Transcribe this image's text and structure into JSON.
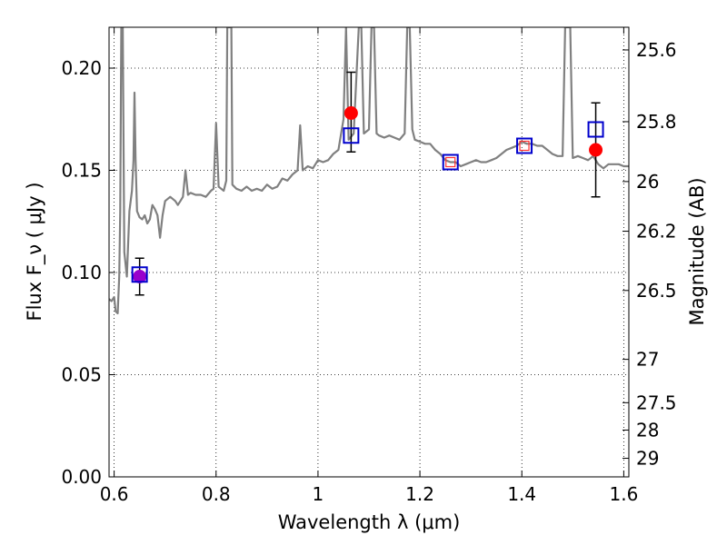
{
  "chart_data": {
    "type": "scatter",
    "title": "",
    "xlabel": "Wavelength  λ (μm)",
    "ylabel": "Flux  F_ν  ( μJy )",
    "y2label": "Magnitude (AB)",
    "xlim": [
      0.59,
      1.61
    ],
    "ylim": [
      0.0,
      0.22
    ],
    "grid": "dotted",
    "x_ticks": [
      0.6,
      0.8,
      1.0,
      1.2,
      1.4,
      1.6
    ],
    "x_tick_labels": [
      "0.6",
      "0.8",
      "1",
      "1.2",
      "1.4",
      "1.6"
    ],
    "y_ticks": [
      0.0,
      0.05,
      0.1,
      0.15,
      0.2
    ],
    "y_tick_labels": [
      "0.00",
      "0.05",
      "0.10",
      "0.15",
      "0.20"
    ],
    "y2_ticks": [
      {
        "flux": 0.2089,
        "label": "25.6"
      },
      {
        "flux": 0.1738,
        "label": "25.8"
      },
      {
        "flux": 0.1445,
        "label": "26"
      },
      {
        "flux": 0.1202,
        "label": "26.2"
      },
      {
        "flux": 0.0912,
        "label": "26.5"
      },
      {
        "flux": 0.0575,
        "label": "27"
      },
      {
        "flux": 0.0363,
        "label": "27.5"
      },
      {
        "flux": 0.0229,
        "label": "28"
      },
      {
        "flux": 0.0091,
        "label": "29"
      }
    ],
    "series": [
      {
        "kind": "line",
        "color": "#808080",
        "points": [
          [
            0.59,
            0.087
          ],
          [
            0.595,
            0.086
          ],
          [
            0.6,
            0.088
          ],
          [
            0.603,
            0.081
          ],
          [
            0.607,
            0.08
          ],
          [
            0.61,
            0.098
          ],
          [
            0.612,
            0.13
          ],
          [
            0.614,
            0.22
          ],
          [
            0.617,
            0.22
          ],
          [
            0.619,
            0.14
          ],
          [
            0.62,
            0.11
          ],
          [
            0.625,
            0.098
          ],
          [
            0.63,
            0.13
          ],
          [
            0.635,
            0.14
          ],
          [
            0.638,
            0.155
          ],
          [
            0.64,
            0.188
          ],
          [
            0.642,
            0.155
          ],
          [
            0.645,
            0.13
          ],
          [
            0.65,
            0.127
          ],
          [
            0.655,
            0.126
          ],
          [
            0.66,
            0.128
          ],
          [
            0.665,
            0.124
          ],
          [
            0.67,
            0.126
          ],
          [
            0.675,
            0.133
          ],
          [
            0.68,
            0.131
          ],
          [
            0.685,
            0.128
          ],
          [
            0.69,
            0.117
          ],
          [
            0.695,
            0.128
          ],
          [
            0.7,
            0.135
          ],
          [
            0.71,
            0.137
          ],
          [
            0.72,
            0.135
          ],
          [
            0.725,
            0.133
          ],
          [
            0.73,
            0.135
          ],
          [
            0.735,
            0.137
          ],
          [
            0.74,
            0.15
          ],
          [
            0.745,
            0.138
          ],
          [
            0.75,
            0.139
          ],
          [
            0.76,
            0.138
          ],
          [
            0.77,
            0.138
          ],
          [
            0.78,
            0.137
          ],
          [
            0.79,
            0.14
          ],
          [
            0.795,
            0.141
          ],
          [
            0.8,
            0.173
          ],
          [
            0.805,
            0.142
          ],
          [
            0.81,
            0.141
          ],
          [
            0.815,
            0.14
          ],
          [
            0.82,
            0.145
          ],
          [
            0.822,
            0.22
          ],
          [
            0.83,
            0.22
          ],
          [
            0.832,
            0.143
          ],
          [
            0.84,
            0.141
          ],
          [
            0.85,
            0.14
          ],
          [
            0.86,
            0.142
          ],
          [
            0.87,
            0.14
          ],
          [
            0.88,
            0.141
          ],
          [
            0.89,
            0.14
          ],
          [
            0.9,
            0.143
          ],
          [
            0.91,
            0.141
          ],
          [
            0.92,
            0.142
          ],
          [
            0.93,
            0.146
          ],
          [
            0.94,
            0.145
          ],
          [
            0.95,
            0.148
          ],
          [
            0.96,
            0.15
          ],
          [
            0.965,
            0.172
          ],
          [
            0.97,
            0.15
          ],
          [
            0.98,
            0.152
          ],
          [
            0.99,
            0.151
          ],
          [
            1.0,
            0.155
          ],
          [
            1.01,
            0.154
          ],
          [
            1.02,
            0.155
          ],
          [
            1.03,
            0.158
          ],
          [
            1.04,
            0.16
          ],
          [
            1.05,
            0.175
          ],
          [
            1.055,
            0.22
          ],
          [
            1.06,
            0.165
          ],
          [
            1.07,
            0.168
          ],
          [
            1.08,
            0.22
          ],
          [
            1.085,
            0.22
          ],
          [
            1.09,
            0.168
          ],
          [
            1.1,
            0.17
          ],
          [
            1.105,
            0.22
          ],
          [
            1.11,
            0.22
          ],
          [
            1.115,
            0.168
          ],
          [
            1.12,
            0.167
          ],
          [
            1.13,
            0.166
          ],
          [
            1.14,
            0.167
          ],
          [
            1.15,
            0.166
          ],
          [
            1.16,
            0.165
          ],
          [
            1.17,
            0.168
          ],
          [
            1.175,
            0.22
          ],
          [
            1.18,
            0.22
          ],
          [
            1.185,
            0.17
          ],
          [
            1.19,
            0.165
          ],
          [
            1.2,
            0.164
          ],
          [
            1.21,
            0.163
          ],
          [
            1.22,
            0.163
          ],
          [
            1.23,
            0.16
          ],
          [
            1.24,
            0.158
          ],
          [
            1.25,
            0.155
          ],
          [
            1.26,
            0.154
          ],
          [
            1.27,
            0.154
          ],
          [
            1.28,
            0.152
          ],
          [
            1.29,
            0.153
          ],
          [
            1.3,
            0.154
          ],
          [
            1.31,
            0.155
          ],
          [
            1.32,
            0.154
          ],
          [
            1.33,
            0.154
          ],
          [
            1.34,
            0.155
          ],
          [
            1.35,
            0.156
          ],
          [
            1.36,
            0.158
          ],
          [
            1.37,
            0.16
          ],
          [
            1.38,
            0.161
          ],
          [
            1.39,
            0.162
          ],
          [
            1.4,
            0.164
          ],
          [
            1.41,
            0.163
          ],
          [
            1.42,
            0.163
          ],
          [
            1.43,
            0.162
          ],
          [
            1.44,
            0.162
          ],
          [
            1.45,
            0.16
          ],
          [
            1.46,
            0.158
          ],
          [
            1.47,
            0.157
          ],
          [
            1.48,
            0.157
          ],
          [
            1.485,
            0.22
          ],
          [
            1.495,
            0.22
          ],
          [
            1.5,
            0.156
          ],
          [
            1.51,
            0.157
          ],
          [
            1.52,
            0.156
          ],
          [
            1.53,
            0.155
          ],
          [
            1.54,
            0.157
          ],
          [
            1.55,
            0.153
          ],
          [
            1.56,
            0.151
          ],
          [
            1.57,
            0.153
          ],
          [
            1.58,
            0.153
          ],
          [
            1.59,
            0.153
          ],
          [
            1.6,
            0.152
          ],
          [
            1.61,
            0.152
          ]
        ]
      },
      {
        "kind": "filled_circle_with_errorbars",
        "color": "#ff0000",
        "points": [
          {
            "x": 0.65,
            "y": 0.098,
            "yerr_low": 0.089,
            "yerr_high": 0.107,
            "color": "#9900cc"
          },
          {
            "x": 1.065,
            "y": 0.178,
            "yerr_low": 0.159,
            "yerr_high": 0.198
          },
          {
            "x": 1.545,
            "y": 0.16,
            "yerr_low": 0.137,
            "yerr_high": 0.183
          }
        ]
      },
      {
        "kind": "open_square",
        "color": "#0000cc",
        "points": [
          {
            "x": 0.65,
            "y": 0.099
          },
          {
            "x": 1.065,
            "y": 0.167
          },
          {
            "x": 1.26,
            "y": 0.154
          },
          {
            "x": 1.405,
            "y": 0.162
          },
          {
            "x": 1.545,
            "y": 0.17
          }
        ]
      },
      {
        "kind": "small_open_square",
        "color": "#ff3333",
        "points": [
          {
            "x": 1.26,
            "y": 0.154
          },
          {
            "x": 1.405,
            "y": 0.162
          }
        ]
      }
    ]
  }
}
